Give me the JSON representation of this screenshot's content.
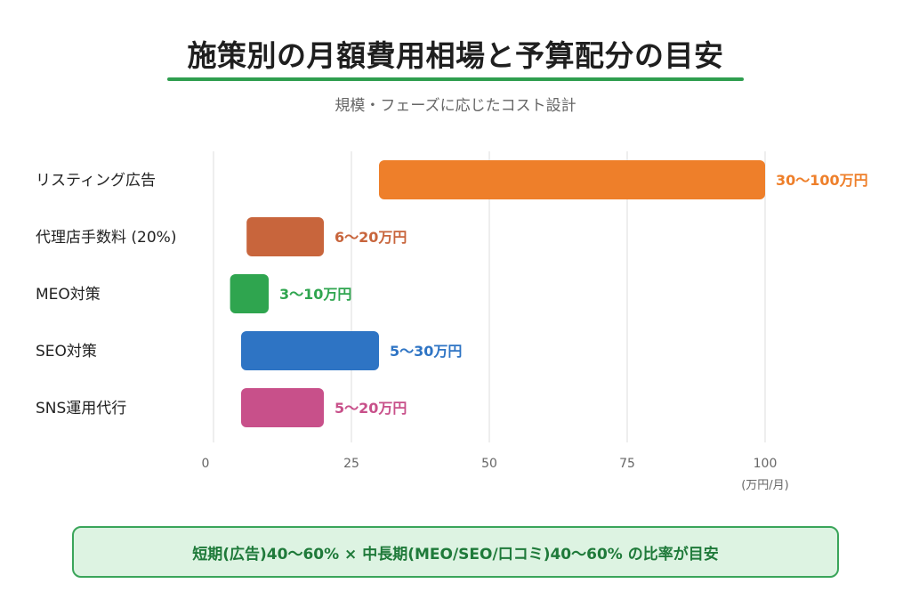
{
  "header": {
    "title": "施策別の月額費用相場と予算配分の目安",
    "subtitle": "規模・フェーズに応じたコスト設計"
  },
  "chart_data": {
    "type": "bar",
    "orientation": "horizontal",
    "range_bars": true,
    "categories": [
      "リスティング広告",
      "代理店手数料 (20%)",
      "MEO対策",
      "SEO対策",
      "SNS運用代行"
    ],
    "ranges": [
      [
        30,
        100
      ],
      [
        6,
        20
      ],
      [
        3,
        10
      ],
      [
        5,
        30
      ],
      [
        5,
        20
      ]
    ],
    "range_labels": [
      "30〜100万円",
      "6〜20万円",
      "3〜10万円",
      "5〜30万円",
      "5〜20万円"
    ],
    "colors": [
      "#ee7f2a",
      "#c8653c",
      "#2fa54f",
      "#2e74c4",
      "#c8508a"
    ],
    "xlim": [
      0,
      100
    ],
    "xticks": [
      0,
      25,
      50,
      75,
      100
    ],
    "xtick_labels": [
      "0",
      "25",
      "50",
      "75",
      "100"
    ],
    "xunit": "(万円/月)",
    "grid": true
  },
  "footer": {
    "note": "短期(広告)40〜60% × 中長期(MEO/SEO/口コミ)40〜60% の比率が目安"
  }
}
